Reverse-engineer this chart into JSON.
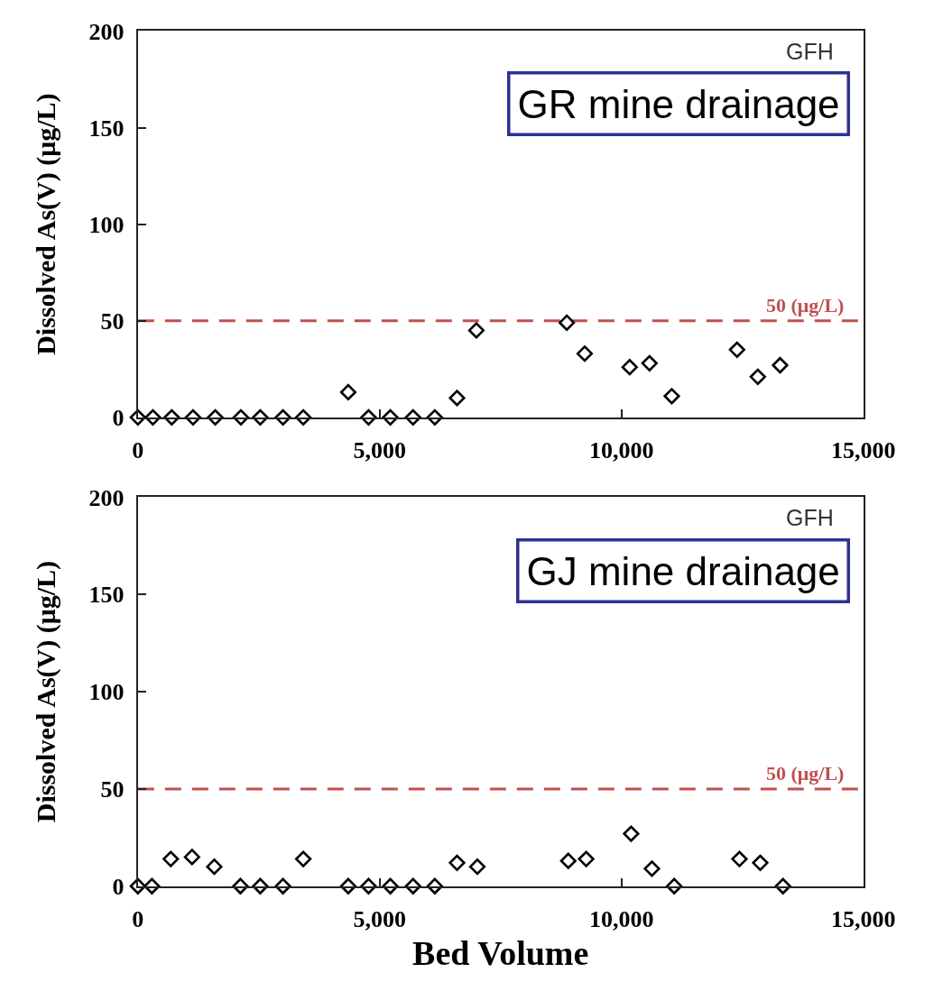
{
  "chart_data": [
    {
      "type": "scatter",
      "ylabel": "Dissolved As(V) (μg/L)",
      "annotations": [
        "GFH",
        "GR mine drainage"
      ],
      "x": [
        0,
        310,
        700,
        1140,
        1600,
        2130,
        2530,
        3000,
        3420,
        4350,
        4770,
        5220,
        5690,
        6140,
        6600,
        7000,
        8870,
        9240,
        10170,
        10580,
        11040,
        12390,
        12820,
        13280
      ],
      "values": [
        0,
        0,
        0,
        0,
        0,
        0,
        0,
        0,
        0,
        13,
        0,
        0,
        0,
        0,
        10,
        45,
        49,
        33,
        26,
        28,
        11,
        35,
        21,
        27
      ],
      "color": "#000000",
      "marker": "diamond",
      "grid": false,
      "xlim": [
        0,
        15000
      ],
      "xticks": [
        0,
        {
          "value": 5000,
          "label": "5,000"
        },
        {
          "value": 10000,
          "label": "10,000"
        },
        {
          "value": 15000,
          "label": "15,000"
        }
      ],
      "ylim": [
        0,
        200
      ],
      "yticks": [
        0,
        50,
        100,
        150,
        200
      ],
      "ref_lines": [
        {
          "axis": "y",
          "value": 50,
          "label": "50 (μg/L)",
          "color": "#c0504d",
          "line_style": "dashed"
        }
      ]
    },
    {
      "type": "scatter",
      "xlabel": "Bed Volume",
      "ylabel": "Dissolved As(V) (μg/L)",
      "annotations": [
        "GFH",
        "GJ mine drainage"
      ],
      "x": [
        0,
        290,
        680,
        1120,
        1580,
        2120,
        2530,
        3000,
        3420,
        4350,
        4770,
        5220,
        5690,
        6140,
        6600,
        7020,
        8900,
        9270,
        10200,
        10630,
        11090,
        12440,
        12870,
        13340
      ],
      "values": [
        0,
        0,
        14,
        15,
        10,
        0,
        0,
        0,
        14,
        0,
        0,
        0,
        0,
        0,
        12,
        10,
        13,
        14,
        27,
        9,
        0,
        14,
        12,
        0
      ],
      "color": "#000000",
      "marker": "diamond",
      "grid": false,
      "xlim": [
        0,
        15000
      ],
      "xticks": [
        0,
        {
          "value": 5000,
          "label": "5,000"
        },
        {
          "value": 10000,
          "label": "10,000"
        },
        {
          "value": 15000,
          "label": "15,000"
        }
      ],
      "ylim": [
        0,
        200
      ],
      "yticks": [
        0,
        50,
        100,
        150,
        200
      ],
      "ref_lines": [
        {
          "axis": "y",
          "value": 50,
          "label": "50 (μg/L)",
          "color": "#c0504d",
          "line_style": "dashed"
        }
      ]
    }
  ]
}
